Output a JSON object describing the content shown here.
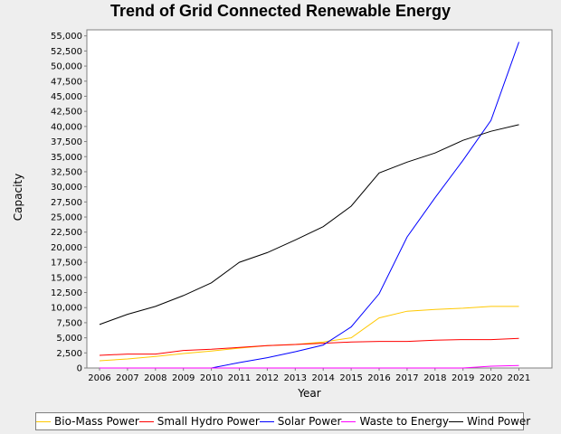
{
  "chart_data": {
    "type": "line",
    "title": "Trend of Grid Connected Renewable Energy",
    "xlabel": "Year",
    "ylabel": "Capacity",
    "categories": [
      "2006",
      "2007",
      "2008",
      "2009",
      "2010",
      "2011",
      "2012",
      "2013",
      "2014",
      "2015",
      "2016",
      "2017",
      "2018",
      "2019",
      "2020",
      "2021"
    ],
    "ylim": [
      0,
      56000
    ],
    "yticks": [
      0,
      2500,
      5000,
      7500,
      10000,
      12500,
      15000,
      17500,
      20000,
      22500,
      25000,
      27500,
      30000,
      32500,
      35000,
      37500,
      40000,
      42500,
      45000,
      47500,
      50000,
      52500,
      55000
    ],
    "grid": false,
    "legend_position": "bottom",
    "series": [
      {
        "name": "Bio-Mass Power",
        "color": "#ffc800",
        "values": [
          1200,
          1500,
          1900,
          2400,
          2800,
          3300,
          3700,
          3900,
          4300,
          5000,
          8300,
          9400,
          9700,
          9900,
          10200,
          10200
        ]
      },
      {
        "name": "Small Hydro Power",
        "color": "#ff0000",
        "values": [
          2100,
          2300,
          2300,
          2900,
          3100,
          3400,
          3700,
          3900,
          4100,
          4300,
          4400,
          4400,
          4600,
          4700,
          4700,
          4900
        ]
      },
      {
        "name": "Solar Power",
        "color": "#0000ff",
        "values": [
          0,
          0,
          0,
          0,
          0,
          900,
          1700,
          2700,
          3800,
          6800,
          12300,
          21700,
          28200,
          34400,
          41000,
          54000
        ]
      },
      {
        "name": "Waste to Energy",
        "color": "#ff00ff",
        "values": [
          0,
          0,
          0,
          0,
          0,
          0,
          0,
          0,
          0,
          0,
          0,
          0,
          0,
          0,
          300,
          400
        ]
      },
      {
        "name": "Wind Power",
        "color": "#000000",
        "values": [
          7200,
          8900,
          10200,
          12000,
          14100,
          17500,
          19100,
          21200,
          23400,
          26800,
          32300,
          34100,
          35600,
          37700,
          39200,
          40300
        ]
      }
    ]
  }
}
